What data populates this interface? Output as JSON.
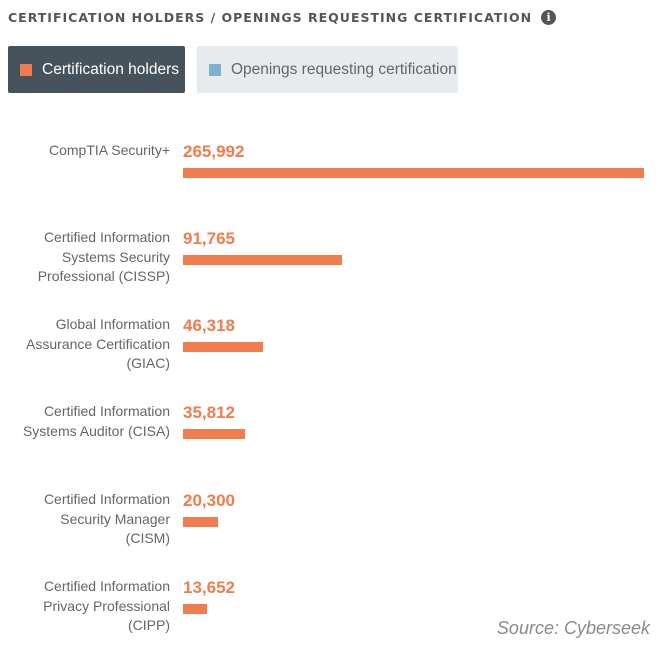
{
  "header": {
    "title": "CERTIFICATION HOLDERS / OPENINGS REQUESTING CERTIFICATION",
    "info_icon_glyph": "i"
  },
  "toggles": {
    "holders_label": "Certification holders",
    "openings_label": "Openings requesting certification"
  },
  "colors": {
    "holders": "#f07d4f",
    "openings": "#7fb0d2"
  },
  "chart_data": {
    "type": "bar",
    "orientation": "horizontal",
    "categories": [
      [
        "CompTIA Security+"
      ],
      [
        "Certified Information",
        "Systems Security",
        "Professional (CISSP)"
      ],
      [
        "Global Information",
        "Assurance Certification",
        "(GIAC)"
      ],
      [
        "Certified Information",
        "Systems Auditor (CISA)"
      ],
      [
        "Certified Information",
        "Security Manager",
        "(CISM)"
      ],
      [
        "Certified Information",
        "Privacy Professional",
        "(CIPP)"
      ]
    ],
    "series": [
      {
        "name": "Certification holders",
        "values": [
          265992,
          91765,
          46318,
          35812,
          20300,
          13652
        ],
        "value_labels": [
          "265,992",
          "91,765",
          "46,318",
          "35,812",
          "20,300",
          "13,652"
        ]
      }
    ],
    "xlim": [
      0,
      265992
    ]
  },
  "source": "Source: Cyberseek"
}
